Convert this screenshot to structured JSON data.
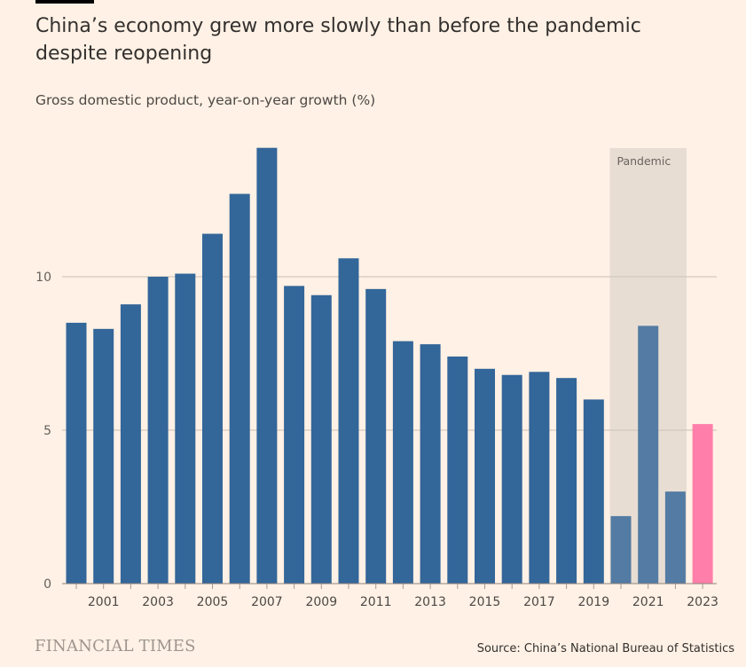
{
  "title": "China’s economy grew more slowly than before the pandemic despite reopening",
  "subtitle": "Gross domestic product, year-on-year growth (%)",
  "source": "Source: China’s National Bureau of Statistics",
  "logo": "FINANCIAL TIMES",
  "chart_data": {
    "type": "bar",
    "title": "China’s economy grew more slowly than before the pandemic despite reopening",
    "ylabel": "Gross domestic product, year-on-year growth (%)",
    "categories": [
      "2000",
      "2001",
      "2002",
      "2003",
      "2004",
      "2005",
      "2006",
      "2007",
      "2008",
      "2009",
      "2010",
      "2011",
      "2012",
      "2013",
      "2014",
      "2015",
      "2016",
      "2017",
      "2018",
      "2019",
      "2020",
      "2021",
      "2022",
      "2023"
    ],
    "values": [
      8.5,
      8.3,
      9.1,
      10.0,
      10.1,
      11.4,
      12.7,
      14.2,
      9.7,
      9.4,
      10.6,
      9.6,
      7.9,
      7.8,
      7.4,
      7.0,
      6.8,
      6.9,
      6.7,
      6.0,
      2.2,
      8.4,
      3.0,
      5.2
    ],
    "x_tick_labels": [
      "2001",
      "2003",
      "2005",
      "2007",
      "2009",
      "2011",
      "2013",
      "2015",
      "2017",
      "2019",
      "2021",
      "2023"
    ],
    "y_ticks": [
      0,
      5,
      10
    ],
    "ylim": [
      0,
      14.2
    ],
    "grid": true,
    "annotation": {
      "label": "Pandemic",
      "from": "2020",
      "to": "2022"
    },
    "colors": {
      "bar": "#336699",
      "highlight": "#ff7faa",
      "highlight_year": "2023",
      "shade": "#e8ddd4",
      "background": "#fff1e5"
    }
  }
}
